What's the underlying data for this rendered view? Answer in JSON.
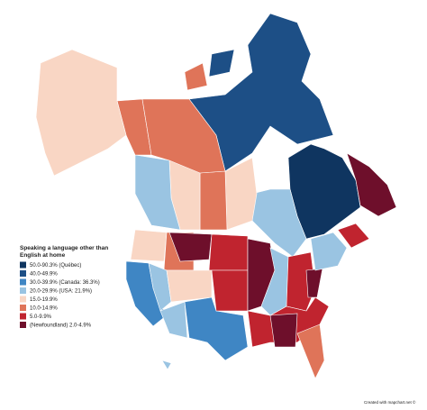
{
  "legend": {
    "title": [
      "Speaking a language other than",
      "English at home"
    ],
    "items": [
      {
        "label": "50.0-90.3% (Québec)",
        "color": "#0f3560"
      },
      {
        "label": "40.0-49.9%",
        "color": "#1d4f86"
      },
      {
        "label": "30.0-39.9% (Canada: 36.3%)",
        "color": "#3f86c4"
      },
      {
        "label": "20.0-29.9% (USA: 21.9%)",
        "color": "#9ac4e2"
      },
      {
        "label": "15.0-19.9%",
        "color": "#f9d6c4"
      },
      {
        "label": "10.0-14.9%",
        "color": "#df7459"
      },
      {
        "label": "5.0-9.9%",
        "color": "#c0242f"
      },
      {
        "label": "(Newfoundland) 2.0-4.9%",
        "color": "#6e0f2b"
      }
    ]
  },
  "credit": "Created with mapchart.net ©"
}
